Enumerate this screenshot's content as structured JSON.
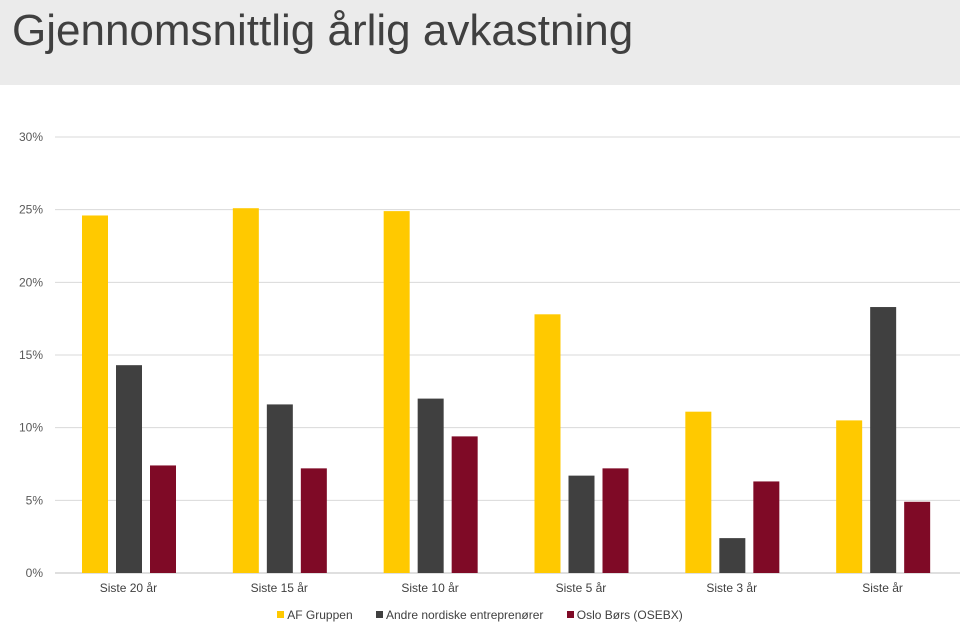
{
  "header": {
    "title": "Gjennomsnittlig årlig avkastning"
  },
  "chart_data": {
    "type": "bar",
    "title": "",
    "xlabel": "",
    "ylabel": "",
    "ylim": [
      0,
      30
    ],
    "yticks": [
      "0%",
      "5%",
      "10%",
      "15%",
      "20%",
      "25%",
      "30%"
    ],
    "grid": true,
    "legend": "bottom",
    "categories": [
      "Siste 20 år",
      "Siste 15 år",
      "Siste 10 år",
      "Siste 5 år",
      "Siste 3 år",
      "Siste år"
    ],
    "series": [
      {
        "name": "AF Gruppen",
        "color": "#ffc900",
        "values": [
          24.6,
          25.1,
          24.9,
          17.8,
          11.1,
          10.5
        ]
      },
      {
        "name": "Andre nordiske entreprenører",
        "color": "#404040",
        "values": [
          14.3,
          11.6,
          12.0,
          6.7,
          2.4,
          18.3
        ]
      },
      {
        "name": "Oslo Børs (OSEBX)",
        "color": "#7f0a26",
        "values": [
          7.4,
          7.2,
          9.4,
          7.2,
          6.3,
          4.9
        ]
      }
    ]
  }
}
